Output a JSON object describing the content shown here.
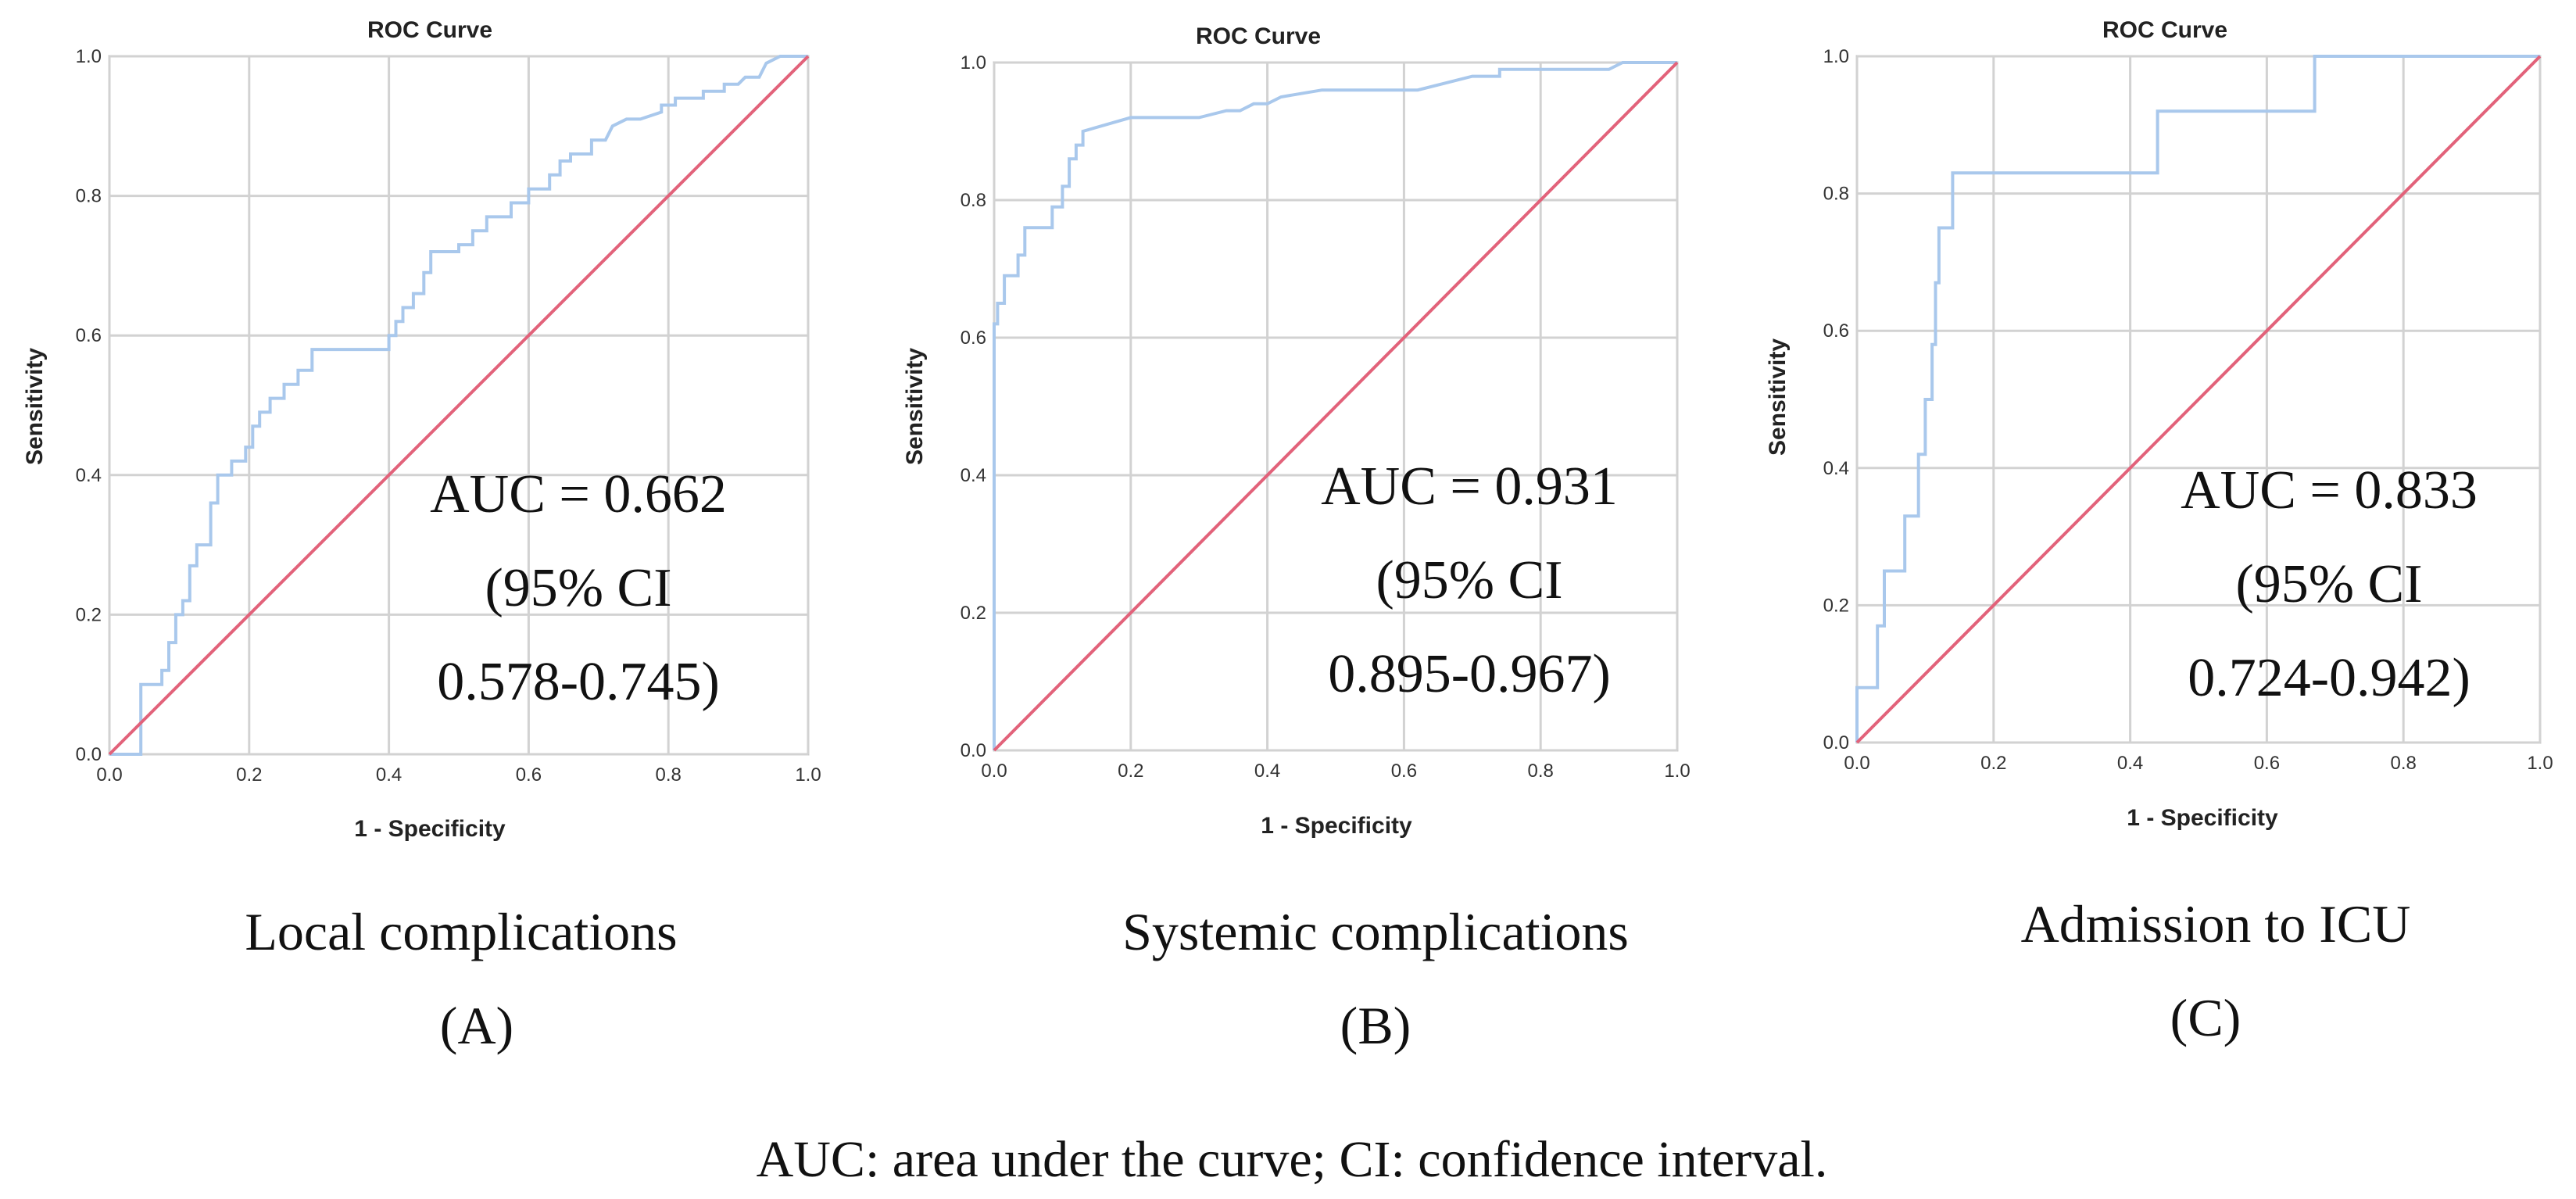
{
  "chart_data": [
    {
      "type": "line",
      "panel_id": "A",
      "title": "ROC Curve",
      "xlabel": "1 - Specificity",
      "ylabel": "Sensitivity",
      "xlim": [
        0,
        1
      ],
      "ylim": [
        0,
        1
      ],
      "grid": true,
      "x_ticks": [
        "0.0",
        "0.2",
        "0.4",
        "0.6",
        "0.8",
        "1.0"
      ],
      "y_ticks": [
        "0.0",
        "0.2",
        "0.4",
        "0.6",
        "0.8",
        "1.0"
      ],
      "annotation": [
        "AUC = 0.662",
        "(95% CI",
        "0.578-0.745)"
      ],
      "caption": "Local complications",
      "label": "(A)",
      "series": [
        {
          "name": "ROC",
          "color": "#a9c8ec",
          "x": [
            0.0,
            0.045,
            0.045,
            0.075,
            0.075,
            0.085,
            0.085,
            0.095,
            0.095,
            0.105,
            0.105,
            0.115,
            0.115,
            0.125,
            0.125,
            0.145,
            0.145,
            0.155,
            0.155,
            0.175,
            0.175,
            0.195,
            0.195,
            0.205,
            0.205,
            0.215,
            0.215,
            0.23,
            0.23,
            0.25,
            0.25,
            0.27,
            0.27,
            0.29,
            0.29,
            0.31,
            0.31,
            0.4,
            0.4,
            0.41,
            0.41,
            0.42,
            0.42,
            0.435,
            0.435,
            0.45,
            0.45,
            0.46,
            0.46,
            0.5,
            0.5,
            0.52,
            0.52,
            0.54,
            0.54,
            0.575,
            0.575,
            0.6,
            0.6,
            0.63,
            0.63,
            0.645,
            0.645,
            0.66,
            0.66,
            0.69,
            0.69,
            0.71,
            0.72,
            0.74,
            0.76,
            0.79,
            0.79,
            0.81,
            0.81,
            0.85,
            0.85,
            0.88,
            0.88,
            0.9,
            0.91,
            0.93,
            0.94,
            0.96,
            1.0
          ],
          "y": [
            0.0,
            0.0,
            0.1,
            0.1,
            0.12,
            0.12,
            0.16,
            0.16,
            0.2,
            0.2,
            0.22,
            0.22,
            0.27,
            0.27,
            0.3,
            0.3,
            0.36,
            0.36,
            0.4,
            0.4,
            0.42,
            0.42,
            0.44,
            0.44,
            0.47,
            0.47,
            0.49,
            0.49,
            0.51,
            0.51,
            0.53,
            0.53,
            0.55,
            0.55,
            0.58,
            0.58,
            0.58,
            0.58,
            0.6,
            0.6,
            0.62,
            0.62,
            0.64,
            0.64,
            0.66,
            0.66,
            0.69,
            0.69,
            0.72,
            0.72,
            0.73,
            0.73,
            0.75,
            0.75,
            0.77,
            0.77,
            0.79,
            0.79,
            0.81,
            0.81,
            0.83,
            0.83,
            0.85,
            0.85,
            0.86,
            0.86,
            0.88,
            0.88,
            0.9,
            0.91,
            0.91,
            0.92,
            0.93,
            0.93,
            0.94,
            0.94,
            0.95,
            0.95,
            0.96,
            0.96,
            0.97,
            0.97,
            0.99,
            1.0,
            1.0
          ]
        },
        {
          "name": "Reference line",
          "color": "#e2627a",
          "x": [
            0,
            1
          ],
          "y": [
            0,
            1
          ]
        }
      ]
    },
    {
      "type": "line",
      "panel_id": "B",
      "title": "ROC Curve",
      "xlabel": "1 - Specificity",
      "ylabel": "Sensitivity",
      "xlim": [
        0,
        1
      ],
      "ylim": [
        0,
        1
      ],
      "grid": true,
      "x_ticks": [
        "0.0",
        "0.2",
        "0.4",
        "0.6",
        "0.8",
        "1.0"
      ],
      "y_ticks": [
        "0.0",
        "0.2",
        "0.4",
        "0.6",
        "0.8",
        "1.0"
      ],
      "annotation": [
        "AUC = 0.931",
        "(95% CI",
        "0.895-0.967)"
      ],
      "caption": "Systemic complications",
      "label": "(B)",
      "series": [
        {
          "name": "ROC",
          "color": "#a9c8ec",
          "x": [
            0.0,
            0.0,
            0.005,
            0.005,
            0.015,
            0.015,
            0.035,
            0.035,
            0.045,
            0.045,
            0.085,
            0.085,
            0.1,
            0.1,
            0.11,
            0.11,
            0.12,
            0.12,
            0.13,
            0.13,
            0.2,
            0.3,
            0.34,
            0.36,
            0.38,
            0.4,
            0.42,
            0.48,
            0.62,
            0.66,
            0.7,
            0.72,
            0.74,
            0.74,
            0.82,
            0.82,
            0.9,
            0.92,
            1.0
          ],
          "y": [
            0.0,
            0.62,
            0.62,
            0.65,
            0.65,
            0.69,
            0.69,
            0.72,
            0.72,
            0.76,
            0.76,
            0.79,
            0.79,
            0.82,
            0.82,
            0.86,
            0.86,
            0.88,
            0.88,
            0.9,
            0.92,
            0.92,
            0.93,
            0.93,
            0.94,
            0.94,
            0.95,
            0.96,
            0.96,
            0.97,
            0.98,
            0.98,
            0.98,
            0.99,
            0.99,
            0.99,
            0.99,
            1.0,
            1.0
          ]
        },
        {
          "name": "Reference line",
          "color": "#e2627a",
          "x": [
            0,
            1
          ],
          "y": [
            0,
            1
          ]
        }
      ]
    },
    {
      "type": "line",
      "panel_id": "C",
      "title": "ROC Curve",
      "xlabel": "1 - Specificity",
      "ylabel": "Sensitivity",
      "xlim": [
        0,
        1
      ],
      "ylim": [
        0,
        1
      ],
      "grid": true,
      "x_ticks": [
        "0.0",
        "0.2",
        "0.4",
        "0.6",
        "0.8",
        "1.0"
      ],
      "y_ticks": [
        "0.0",
        "0.2",
        "0.4",
        "0.6",
        "0.8",
        "1.0"
      ],
      "annotation": [
        "AUC = 0.833",
        "(95% CI",
        "0.724-0.942)"
      ],
      "caption": "Admission to ICU",
      "label": "(C)",
      "series": [
        {
          "name": "ROC",
          "color": "#a9c8ec",
          "x": [
            0.0,
            0.0,
            0.03,
            0.03,
            0.04,
            0.04,
            0.05,
            0.05,
            0.07,
            0.07,
            0.08,
            0.08,
            0.09,
            0.09,
            0.1,
            0.1,
            0.11,
            0.11,
            0.115,
            0.115,
            0.12,
            0.12,
            0.125,
            0.125,
            0.14,
            0.14,
            0.16,
            0.16,
            0.44,
            0.44,
            0.65,
            0.65,
            0.67,
            0.67,
            1.0
          ],
          "y": [
            0.0,
            0.08,
            0.08,
            0.17,
            0.17,
            0.25,
            0.25,
            0.25,
            0.25,
            0.33,
            0.33,
            0.33,
            0.33,
            0.42,
            0.42,
            0.5,
            0.5,
            0.58,
            0.58,
            0.67,
            0.67,
            0.75,
            0.75,
            0.75,
            0.75,
            0.83,
            0.83,
            0.83,
            0.83,
            0.92,
            0.92,
            0.92,
            0.92,
            1.0,
            1.0
          ]
        },
        {
          "name": "Reference line",
          "color": "#e2627a",
          "x": [
            0,
            1
          ],
          "y": [
            0,
            1
          ]
        }
      ]
    }
  ],
  "footnote": "AUC: area under the curve; CI: confidence interval."
}
